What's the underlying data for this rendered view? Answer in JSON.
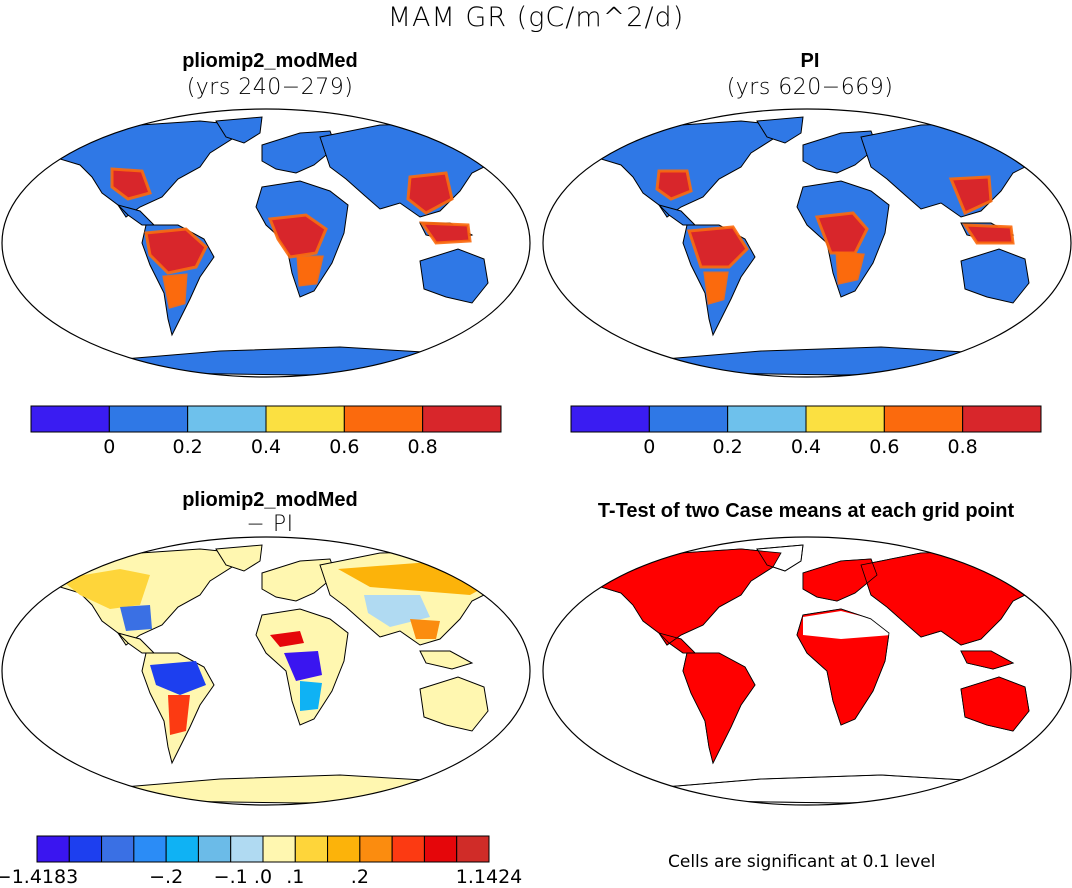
{
  "figure": {
    "title": "MAM GR (gC/m^2/d)"
  },
  "panels": [
    {
      "id": "pliomip2",
      "title": "pliomip2_modMed",
      "subtitle": "(yrs 240−279)",
      "colorbar": "abs"
    },
    {
      "id": "pi",
      "title": "PI",
      "subtitle": "(yrs 620−669)",
      "colorbar": "abs"
    },
    {
      "id": "diff",
      "title": "pliomip2_modMed",
      "subtitle": "− PI",
      "colorbar": "diff"
    },
    {
      "id": "ttest",
      "title": "T-Test of two Case means at each grid point",
      "subtitle": "",
      "note": "Cells are significant at 0.1 level"
    }
  ],
  "colorbars": {
    "abs": {
      "colors": [
        "#3a1cf2",
        "#2f78e6",
        "#6ec1ec",
        "#fbe041",
        "#fb6a0d",
        "#d8262b"
      ],
      "labels": [
        "0",
        "0.2",
        "0.4",
        "0.6",
        "0.8"
      ]
    },
    "diff": {
      "colors": [
        "#3a15f0",
        "#1d3fef",
        "#3a70e4",
        "#2b8cf6",
        "#0fb2f4",
        "#6bbbe8",
        "#b0daf2",
        "#fff7b0",
        "#fed53a",
        "#fcb30a",
        "#fb8c0f",
        "#fc3a12",
        "#e5060a",
        "#d02c28"
      ],
      "labels": [
        "−1.4183",
        "−.2",
        "−.1",
        ".0",
        ".1",
        ".2",
        "1.1424"
      ]
    }
  },
  "colors": {
    "land_low": "#2f78e6",
    "land_high": "#d8262b",
    "significant": "#ff0000",
    "diff_background": "#fff7b0"
  }
}
